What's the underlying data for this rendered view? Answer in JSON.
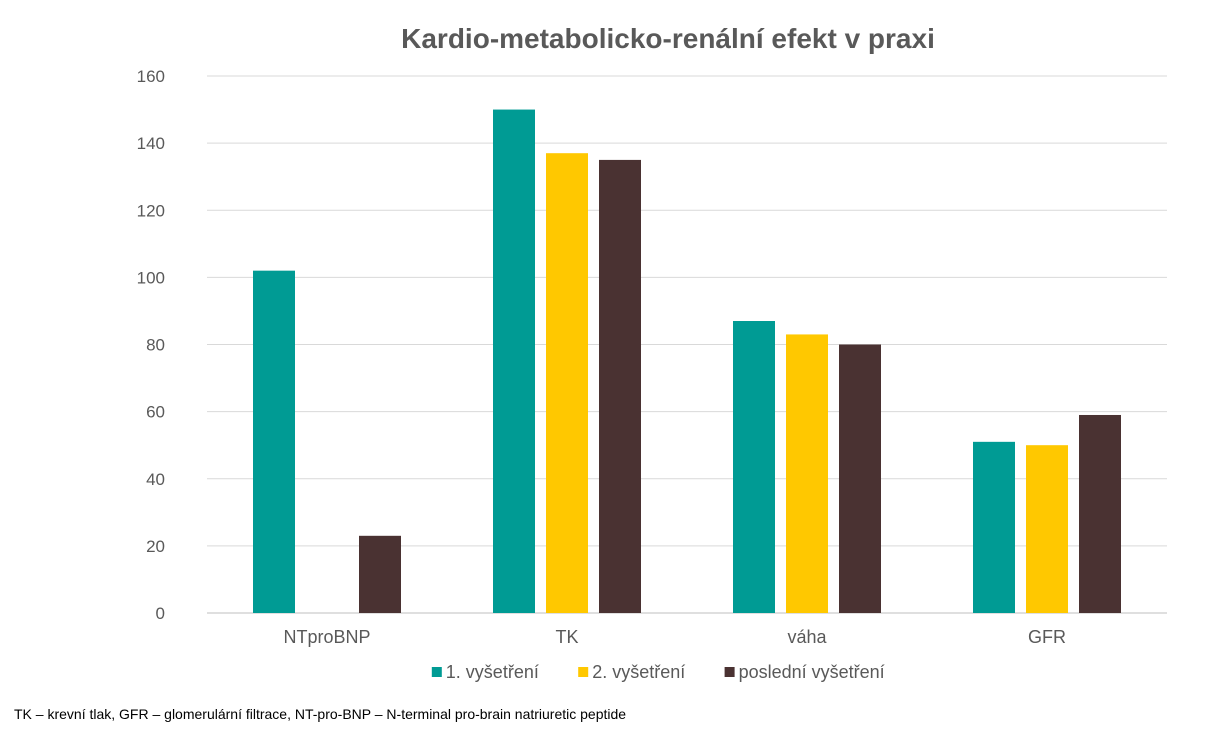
{
  "chart_data": {
    "type": "bar",
    "title": "Kardio-metabolicko-renální efekt v praxi",
    "categories": [
      "NTproBNP",
      "TK",
      "váha",
      "GFR"
    ],
    "series": [
      {
        "name": "1. vyšetření",
        "color": "#009B94",
        "values": [
          102,
          150,
          87,
          51
        ]
      },
      {
        "name": "2. vyšetření",
        "color": "#FFC800",
        "values": [
          0,
          137,
          83,
          50
        ]
      },
      {
        "name": "poslední vyšetření",
        "color": "#4A3232",
        "values": [
          23,
          135,
          80,
          59
        ]
      }
    ],
    "ylim": [
      0,
      160
    ],
    "yticks": [
      0,
      20,
      40,
      60,
      80,
      100,
      120,
      140,
      160
    ],
    "xlabel": "",
    "ylabel": "",
    "grid": true,
    "legend_position": "bottom"
  },
  "footnote": "TK – krevní tlak, GFR – glomerulární filtrace, NT-pro-BNP – N-terminal pro-brain natriuretic peptide"
}
